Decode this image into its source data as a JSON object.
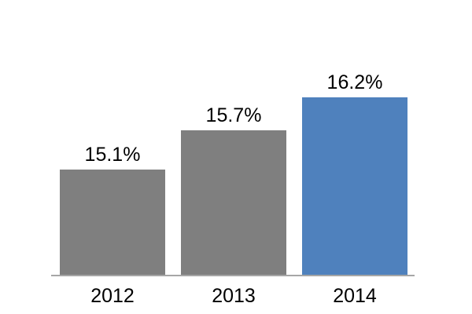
{
  "chart_data": {
    "type": "bar",
    "title": "",
    "xlabel": "",
    "ylabel": "",
    "categories": [
      "2012",
      "2013",
      "2014"
    ],
    "values": [
      15.1,
      15.7,
      16.2
    ],
    "value_labels": [
      "15.1%",
      "15.7%",
      "16.2%"
    ],
    "bar_colors": [
      "#7F7F7F",
      "#7F7F7F",
      "#4F81BD"
    ],
    "default_bar_color": "#7F7F7F",
    "highlight_bar_color": "#4F81BD",
    "axis_line_color": "#A6A6A6",
    "text_color": "#000000",
    "background_color": "#FFFFFF",
    "ylim": [
      13.5,
      16.8
    ],
    "grid": false,
    "legend_position": "none",
    "y_axis_visible": false,
    "x_tick_marks": false
  }
}
